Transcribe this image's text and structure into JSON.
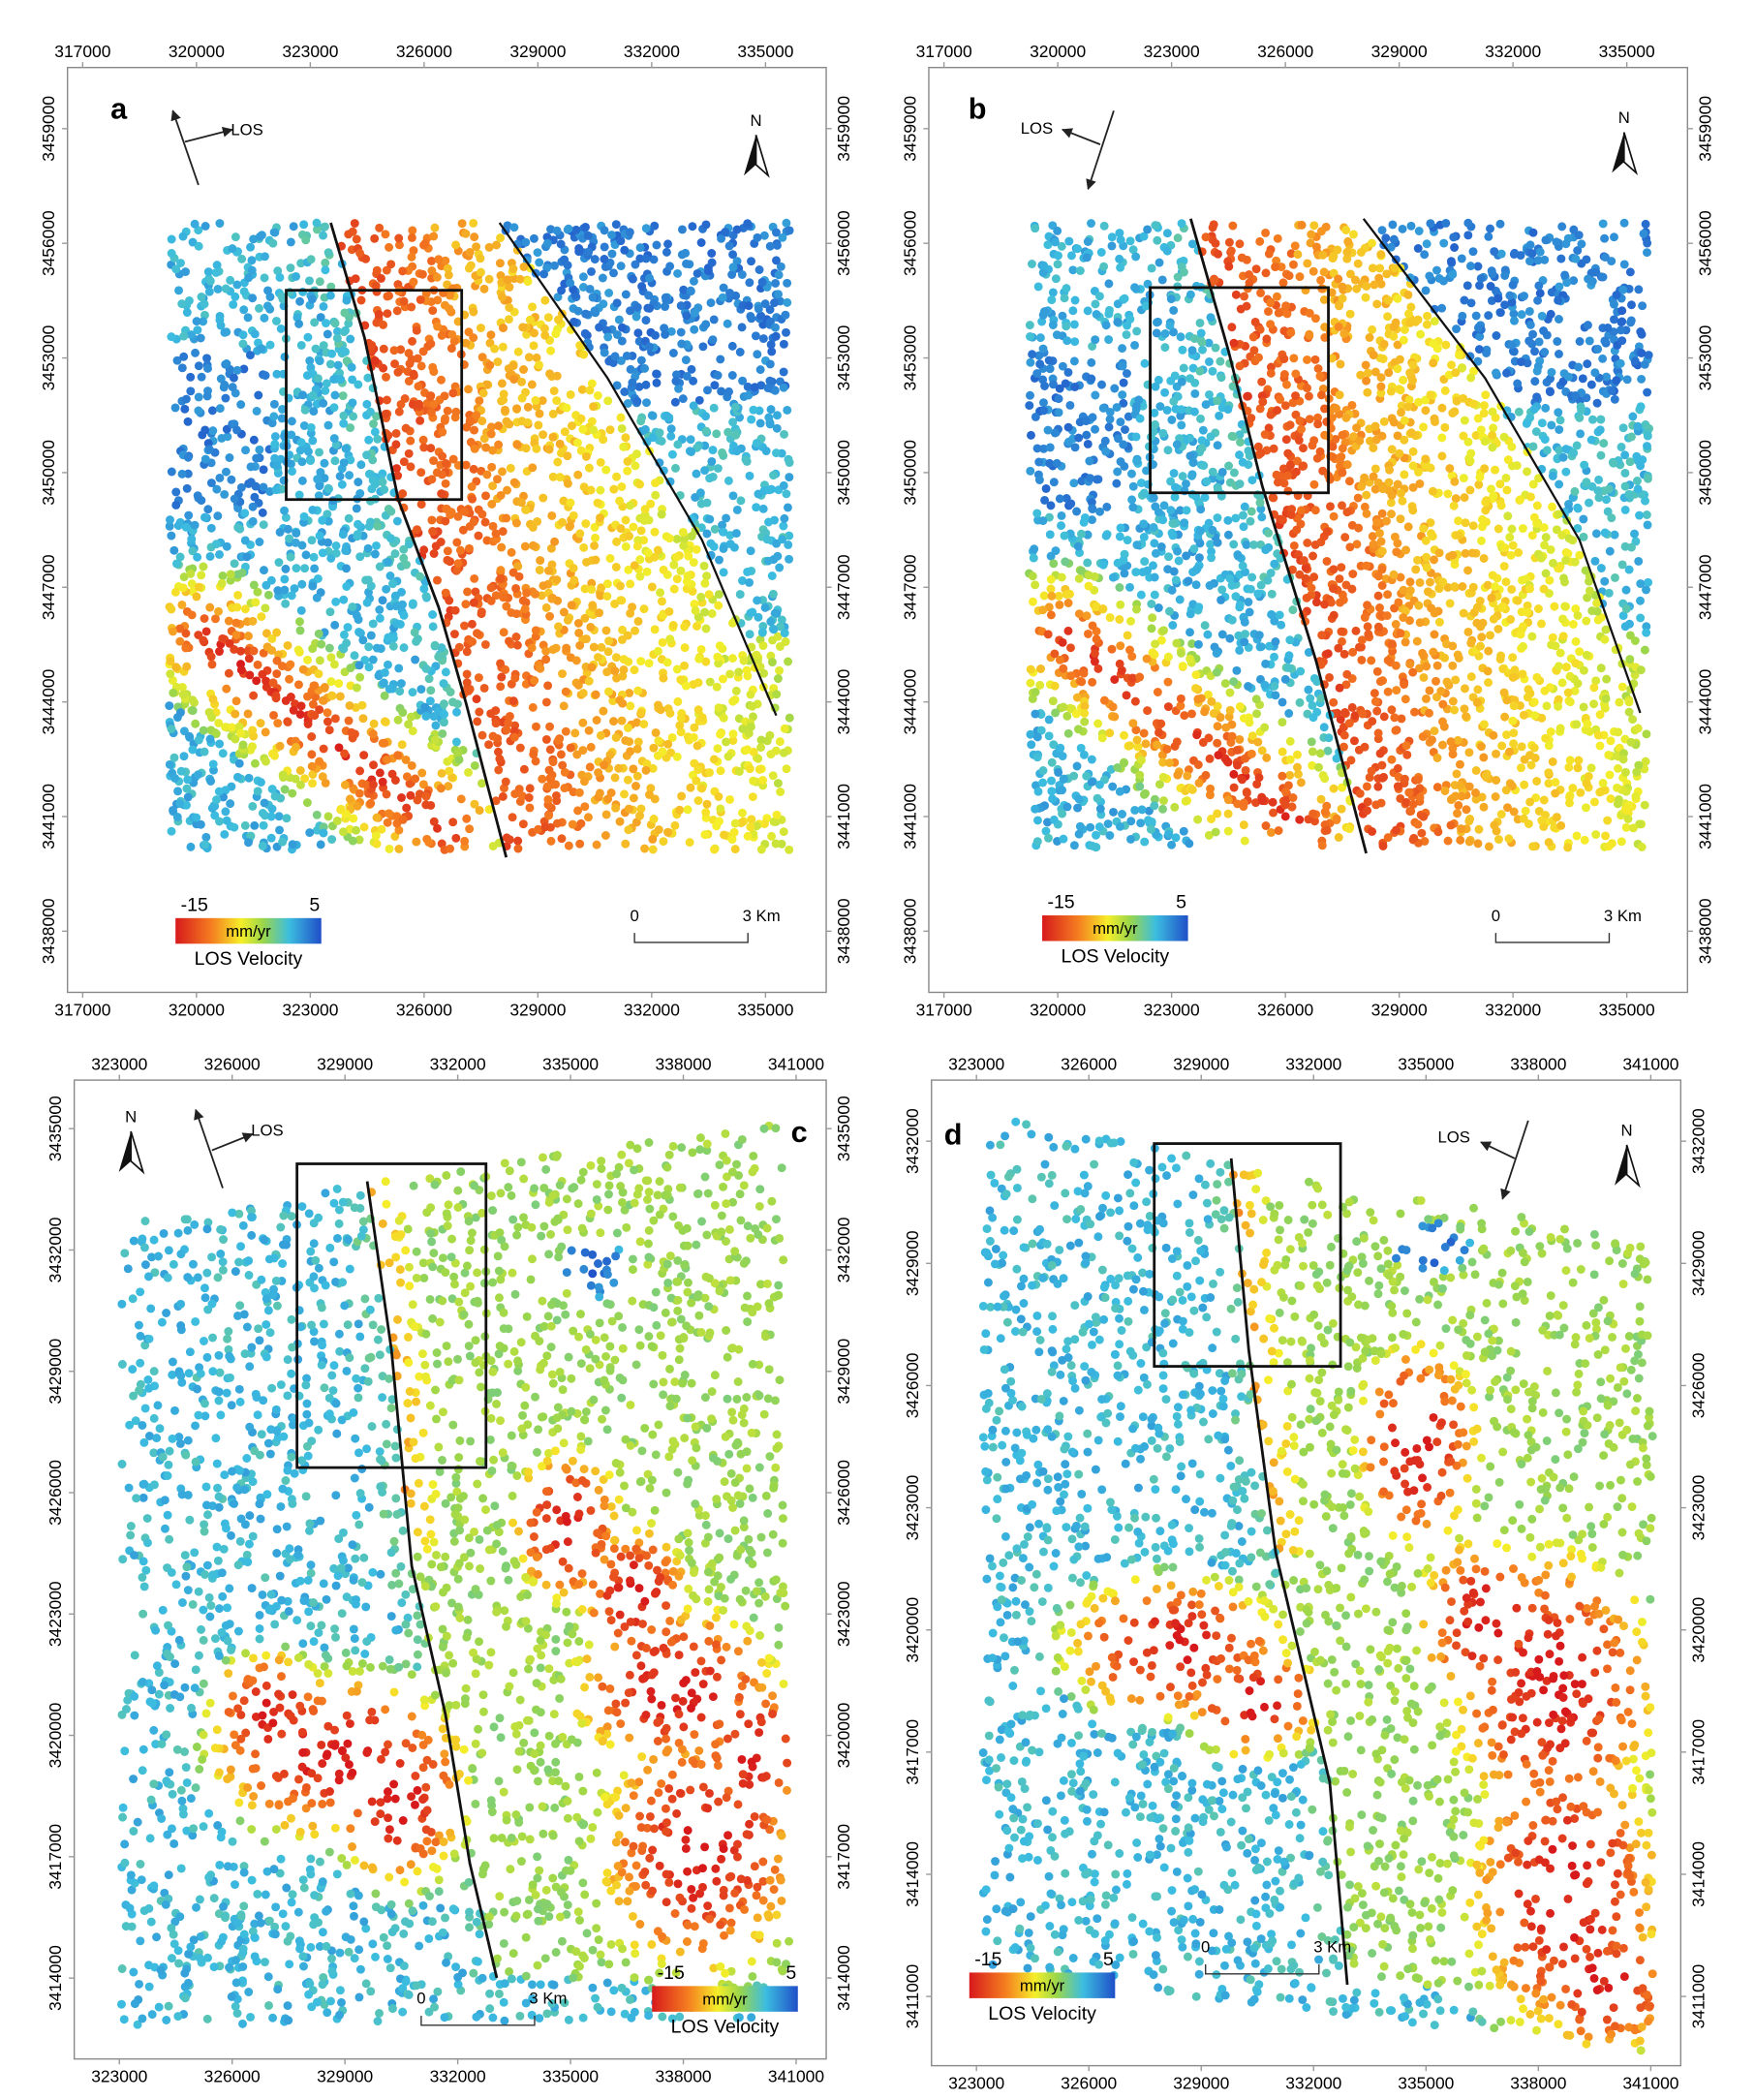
{
  "panels": [
    {
      "label": "a",
      "xlim": [
        316600,
        336600
      ],
      "ylim": [
        3436400,
        3460600
      ],
      "xticks": [
        317000,
        320000,
        323000,
        326000,
        329000,
        332000,
        335000
      ],
      "yticks": [
        3438000,
        3441000,
        3444000,
        3447000,
        3450000,
        3453000,
        3456000,
        3459000
      ],
      "los": "LOS",
      "north": "N",
      "legend": {
        "min": -15,
        "max": 5,
        "unit": "mm/yr",
        "title": "LOS Velocity"
      },
      "scale_bar": {
        "start": 0,
        "end": "3 Km"
      }
    },
    {
      "label": "b",
      "xlim": [
        316600,
        336600
      ],
      "ylim": [
        3436400,
        3460600
      ],
      "xticks": [
        317000,
        320000,
        323000,
        326000,
        329000,
        332000,
        335000
      ],
      "yticks": [
        3438000,
        3441000,
        3444000,
        3447000,
        3450000,
        3453000,
        3456000,
        3459000
      ],
      "los": "LOS",
      "north": "N",
      "legend": {
        "min": -15,
        "max": 5,
        "unit": "mm/yr",
        "title": "LOS Velocity"
      },
      "scale_bar": {
        "start": 0,
        "end": "3 Km"
      }
    },
    {
      "label": "c",
      "xlim": [
        321800,
        341800
      ],
      "ylim": [
        3412000,
        3436200
      ],
      "xticks": [
        323000,
        326000,
        329000,
        332000,
        335000,
        338000,
        341000
      ],
      "yticks": [
        3414000,
        3417000,
        3420000,
        3423000,
        3426000,
        3429000,
        3432000,
        3435000
      ],
      "los": "LOS",
      "north": "N",
      "legend": {
        "min": -15,
        "max": 5,
        "unit": "mm/yr",
        "title": "LOS Velocity"
      },
      "scale_bar": {
        "start": 0,
        "end": "3 Km"
      }
    },
    {
      "label": "d",
      "xlim": [
        321800,
        341800
      ],
      "ylim": [
        3409300,
        3433500
      ],
      "xticks": [
        323000,
        326000,
        329000,
        332000,
        335000,
        338000,
        341000
      ],
      "yticks": [
        3411000,
        3414000,
        3417000,
        3420000,
        3423000,
        3426000,
        3429000,
        3432000
      ],
      "los": "LOS",
      "north": "N",
      "legend": {
        "min": -15,
        "max": 5,
        "unit": "mm/yr",
        "title": "LOS Velocity"
      },
      "scale_bar": {
        "start": 0,
        "end": "3 Km"
      }
    }
  ]
}
